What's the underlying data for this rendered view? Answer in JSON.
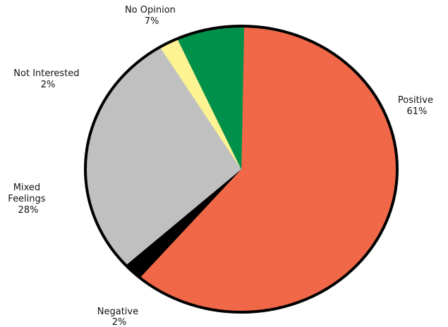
{
  "chart_data": {
    "type": "pie",
    "slices": [
      {
        "label": "Positive",
        "percent_label": "61%",
        "value": 61,
        "color": "#f06848"
      },
      {
        "label": "Negative",
        "percent_label": "2%",
        "value": 2,
        "color": "#000000"
      },
      {
        "label": "Mixed Feelings",
        "percent_label": "28%",
        "value": 28,
        "color": "#c0c0c0"
      },
      {
        "label": "Not Interested",
        "percent_label": "2%",
        "value": 2,
        "color": "#fef392"
      },
      {
        "label": "No Opinion",
        "percent_label": "7%",
        "value": 7,
        "color": "#00904a"
      }
    ],
    "start_angle_deg": 1,
    "direction": "clockwise",
    "outline_color": "#000000"
  }
}
